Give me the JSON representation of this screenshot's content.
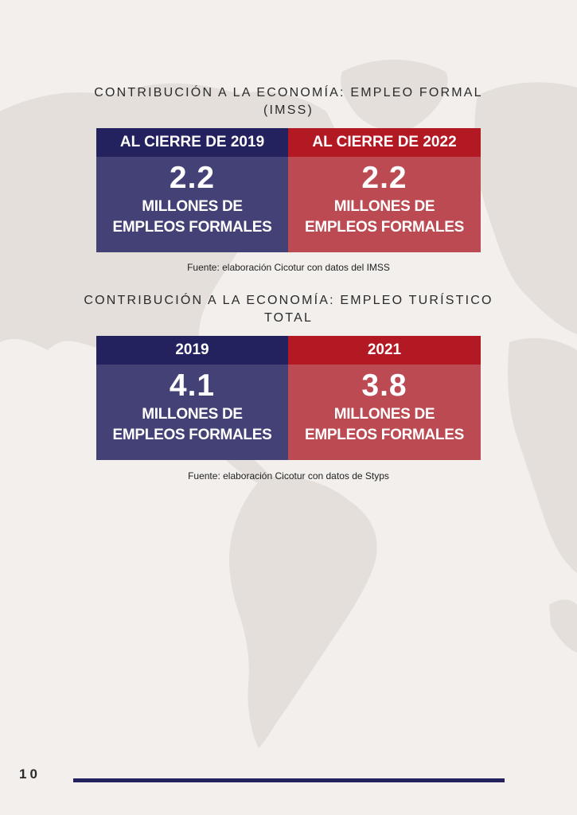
{
  "colors": {
    "navy": "#24225e",
    "navy_light": "#434176",
    "red": "#b31923",
    "red_light": "#bc4a52",
    "background": "#f2efec"
  },
  "section1": {
    "title": "CONTRIBUCIÓN A LA ECONOMÍA: EMPLEO FORMAL (IMSS)",
    "columns": [
      {
        "header": "AL CIERRE DE 2019",
        "value": "2.2",
        "line1": "MILLONES DE",
        "line2": "EMPLEOS FORMALES"
      },
      {
        "header": "AL CIERRE DE 2022",
        "value": "2.2",
        "line1": "MILLONES DE",
        "line2": "EMPLEOS FORMALES"
      }
    ],
    "source": "Fuente: elaboración Cicotur con datos del IMSS"
  },
  "section2": {
    "title": "CONTRIBUCIÓN A LA ECONOMÍA: EMPLEO TURÍSTICO TOTAL",
    "columns": [
      {
        "header": "2019",
        "value": "4.1",
        "line1": "MILLONES DE",
        "line2": "EMPLEOS FORMALES"
      },
      {
        "header": "2021",
        "value": "3.8",
        "line1": "MILLONES DE",
        "line2": "EMPLEOS FORMALES"
      }
    ],
    "source": "Fuente: elaboración Cicotur con datos de Styps"
  },
  "footer": {
    "page_number": "10"
  }
}
